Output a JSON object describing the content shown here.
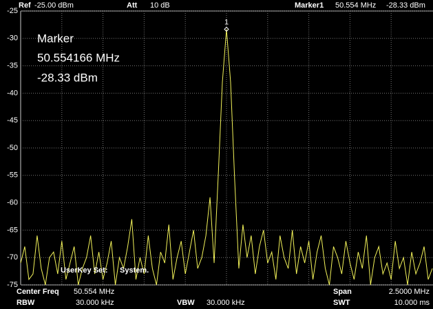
{
  "header": {
    "ref_label": "Ref",
    "ref_value": "-25.00 dBm",
    "att_label": "Att",
    "att_value": "10 dB",
    "marker_label": "Marker1",
    "marker_freq": "50.554 MHz",
    "marker_level": "-28.33 dBm"
  },
  "marker_box": {
    "title": "Marker",
    "freq": "50.554166 MHz",
    "level": "-28.33 dBm"
  },
  "overlay": {
    "key": "UserKey Set:",
    "value": "System."
  },
  "footer": {
    "center_label": "Center Freq",
    "center_value": "50.554 MHz",
    "span_label": "Span",
    "span_value": "2.5000 MHz",
    "rbw_label": "RBW",
    "rbw_value": "30.000 kHz",
    "vbw_label": "VBW",
    "vbw_value": "30.000 kHz",
    "swt_label": "SWT",
    "swt_value": "10.000 ms"
  },
  "chart_data": {
    "type": "line",
    "grid": true,
    "marker_number": "1",
    "marker_index": 50,
    "xlim": [
      49.304,
      51.804
    ],
    "ylim": [
      -75,
      -25
    ],
    "yticks": [
      -25,
      -30,
      -35,
      -40,
      -45,
      -50,
      -55,
      -60,
      -65,
      -70,
      -75
    ],
    "x": [
      49.304,
      49.329,
      49.354,
      49.379,
      49.404,
      49.429,
      49.454,
      49.479,
      49.504,
      49.529,
      49.554,
      49.579,
      49.604,
      49.629,
      49.654,
      49.679,
      49.704,
      49.729,
      49.754,
      49.779,
      49.804,
      49.829,
      49.854,
      49.879,
      49.904,
      49.929,
      49.954,
      49.979,
      50.004,
      50.029,
      50.054,
      50.079,
      50.104,
      50.129,
      50.154,
      50.179,
      50.204,
      50.229,
      50.254,
      50.279,
      50.304,
      50.329,
      50.354,
      50.379,
      50.404,
      50.429,
      50.454,
      50.479,
      50.504,
      50.529,
      50.554,
      50.579,
      50.604,
      50.629,
      50.654,
      50.679,
      50.704,
      50.729,
      50.754,
      50.779,
      50.804,
      50.829,
      50.854,
      50.879,
      50.904,
      50.929,
      50.954,
      50.979,
      51.004,
      51.029,
      51.054,
      51.079,
      51.104,
      51.129,
      51.154,
      51.179,
      51.204,
      51.229,
      51.254,
      51.279,
      51.304,
      51.329,
      51.354,
      51.379,
      51.404,
      51.429,
      51.454,
      51.479,
      51.504,
      51.529,
      51.554,
      51.579,
      51.604,
      51.629,
      51.654,
      51.679,
      51.704,
      51.729,
      51.754,
      51.779,
      51.804
    ],
    "series": [
      {
        "color": "#f4f45a",
        "values": [
          -71,
          -68,
          -74,
          -73,
          -66,
          -72,
          -75,
          -70,
          -69,
          -73,
          -67,
          -74,
          -71,
          -68,
          -75,
          -72,
          -70,
          -66,
          -73,
          -69,
          -74,
          -71,
          -67,
          -75,
          -70,
          -72,
          -68,
          -63,
          -74,
          -70,
          -73,
          -66,
          -72,
          -75,
          -69,
          -71,
          -64,
          -74,
          -70,
          -67,
          -73,
          -69,
          -65,
          -72,
          -70,
          -66,
          -59,
          -71,
          -55,
          -38,
          -28.33,
          -38,
          -56,
          -72,
          -64,
          -70,
          -66,
          -73,
          -68,
          -65,
          -71,
          -69,
          -74,
          -66,
          -70,
          -72,
          -65,
          -73,
          -68,
          -71,
          -67,
          -74,
          -69,
          -66,
          -72,
          -75,
          -68,
          -70,
          -73,
          -67,
          -71,
          -74,
          -69,
          -72,
          -66,
          -75,
          -70,
          -68,
          -73,
          -71,
          -74,
          -67,
          -72,
          -70,
          -75,
          -69,
          -73,
          -71,
          -68,
          -74,
          -72
        ]
      }
    ]
  }
}
